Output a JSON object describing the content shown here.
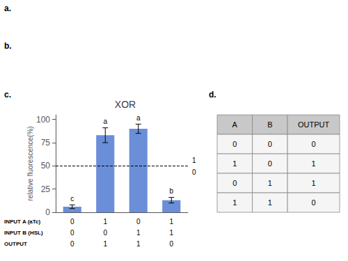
{
  "panel_labels": [
    "a.",
    "b."
  ],
  "chart_data": [
    {
      "type": "bar",
      "title": "XOR",
      "panel_label": "c.",
      "ylabel": "relative fluorescence(%)",
      "categories": [
        null,
        null,
        null,
        null
      ],
      "values": [
        6,
        83,
        90,
        13
      ],
      "errors": [
        2,
        8,
        5,
        3
      ],
      "bar_labels": [
        "c",
        "a",
        "a",
        "b"
      ],
      "color": "#6a8fd8",
      "ylim": [
        0,
        105
      ],
      "yticks": [
        0,
        25,
        50,
        75,
        100
      ],
      "grid": false,
      "threshold": {
        "value": 50,
        "label_above": "1",
        "label_below": "0"
      },
      "x_rows": [
        {
          "label": "INPUT A (aTc)",
          "values": [
            "0",
            "1",
            "0",
            "1"
          ]
        },
        {
          "label": "INPUT B (HSL)",
          "values": [
            "0",
            "0",
            "1",
            "1"
          ]
        },
        {
          "label": "OUTPUT",
          "values": [
            "0",
            "1",
            "1",
            "0"
          ]
        }
      ]
    },
    {
      "type": "table",
      "panel_label": "d.",
      "headers": [
        "A",
        "B",
        "OUTPUT"
      ],
      "rows": [
        [
          "0",
          "0",
          "0"
        ],
        [
          "1",
          "0",
          "1"
        ],
        [
          "0",
          "1",
          "1"
        ],
        [
          "1",
          "1",
          "0"
        ]
      ]
    }
  ]
}
